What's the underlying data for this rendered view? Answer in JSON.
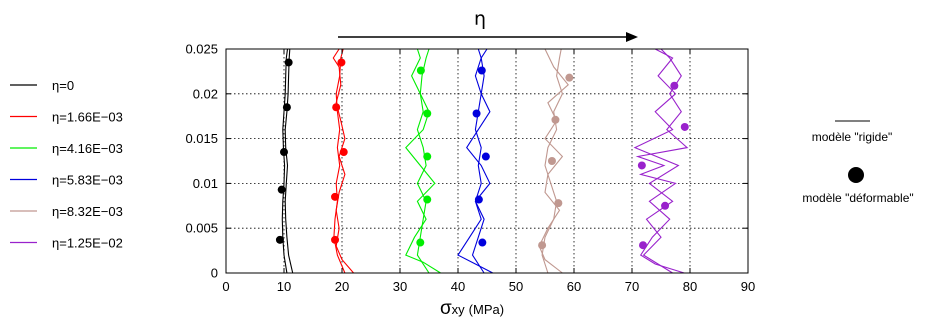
{
  "chart_data": {
    "type": "line",
    "xlabel_symbol": "σ",
    "xlabel_sub": "xy",
    "xlabel_unit": "(MPa)",
    "top_annotation": "η",
    "xlim": [
      0,
      90
    ],
    "ylim": [
      0,
      0.025
    ],
    "x_ticks": [
      "0",
      "10",
      "20",
      "30",
      "40",
      "50",
      "60",
      "70",
      "80",
      "90"
    ],
    "y_ticks": [
      "0",
      "0.005",
      "0.01",
      "0.015",
      "0.02",
      "0.025"
    ],
    "grid": true,
    "legend_position": "left",
    "series": [
      {
        "name": "η=0",
        "color": "#000000",
        "rigid_lines": [
          [
            [
              11.5,
              0
            ],
            [
              10.8,
              0.002
            ],
            [
              10.5,
              0.004
            ],
            [
              10.3,
              0.006
            ],
            [
              10.2,
              0.008
            ],
            [
              10.4,
              0.01
            ],
            [
              10.6,
              0.012
            ],
            [
              10.3,
              0.014
            ],
            [
              10.2,
              0.016
            ],
            [
              10.5,
              0.018
            ],
            [
              10.7,
              0.02
            ],
            [
              10.8,
              0.022
            ],
            [
              10.9,
              0.024
            ],
            [
              11.0,
              0.025
            ]
          ],
          [
            [
              10.5,
              0
            ],
            [
              10.0,
              0.002
            ],
            [
              9.8,
              0.004
            ],
            [
              9.7,
              0.006
            ],
            [
              9.8,
              0.008
            ],
            [
              10.0,
              0.01
            ],
            [
              10.1,
              0.012
            ],
            [
              9.9,
              0.014
            ],
            [
              9.8,
              0.016
            ],
            [
              10.0,
              0.018
            ],
            [
              10.2,
              0.02
            ],
            [
              10.3,
              0.022
            ],
            [
              10.4,
              0.024
            ],
            [
              10.6,
              0.025
            ]
          ]
        ],
        "deformable_points": [
          [
            10.8,
            0.0235
          ],
          [
            10.5,
            0.0185
          ],
          [
            10.0,
            0.0135
          ],
          [
            9.6,
            0.0093
          ],
          [
            9.3,
            0.0037
          ]
        ]
      },
      {
        "name": "η=1.66E−03",
        "color": "#ff0000",
        "rigid_lines": [
          [
            [
              22.0,
              0
            ],
            [
              20.0,
              0.0015
            ],
            [
              19.0,
              0.003
            ],
            [
              19.5,
              0.005
            ],
            [
              19.0,
              0.007
            ],
            [
              19.5,
              0.009
            ],
            [
              20.5,
              0.011
            ],
            [
              19.5,
              0.013
            ],
            [
              20.5,
              0.015
            ],
            [
              19.8,
              0.017
            ],
            [
              19.0,
              0.019
            ],
            [
              19.8,
              0.021
            ],
            [
              19.5,
              0.023
            ],
            [
              18.5,
              0.024
            ],
            [
              19.5,
              0.025
            ]
          ],
          [
            [
              20.5,
              0
            ],
            [
              19.2,
              0.002
            ],
            [
              18.6,
              0.004
            ],
            [
              18.8,
              0.006
            ],
            [
              19.2,
              0.008
            ],
            [
              19.0,
              0.01
            ],
            [
              19.6,
              0.012
            ],
            [
              19.2,
              0.014
            ],
            [
              19.6,
              0.016
            ],
            [
              19.2,
              0.018
            ],
            [
              19.0,
              0.02
            ],
            [
              19.6,
              0.022
            ],
            [
              19.8,
              0.024
            ],
            [
              20.2,
              0.025
            ]
          ]
        ],
        "deformable_points": [
          [
            19.9,
            0.0235
          ],
          [
            19.0,
            0.0185
          ],
          [
            20.3,
            0.0135
          ],
          [
            18.8,
            0.0085
          ],
          [
            18.8,
            0.0037
          ]
        ]
      },
      {
        "name": "η=4.16E−03",
        "color": "#00ee00",
        "rigid_lines": [
          [
            [
              37.0,
              0
            ],
            [
              34.0,
              0.0012
            ],
            [
              31.0,
              0.002
            ],
            [
              32.5,
              0.004
            ],
            [
              34.5,
              0.006
            ],
            [
              33.0,
              0.008
            ],
            [
              36.0,
              0.01
            ],
            [
              33.5,
              0.012
            ],
            [
              31.0,
              0.014
            ],
            [
              34.0,
              0.016
            ],
            [
              35.0,
              0.018
            ],
            [
              33.5,
              0.02
            ],
            [
              32.0,
              0.022
            ],
            [
              33.5,
              0.024
            ],
            [
              33.0,
              0.025
            ]
          ],
          [
            [
              35.0,
              0
            ],
            [
              33.0,
              0.002
            ],
            [
              33.5,
              0.004
            ],
            [
              34.0,
              0.006
            ],
            [
              34.5,
              0.008
            ],
            [
              33.0,
              0.01
            ],
            [
              34.5,
              0.012
            ],
            [
              34.0,
              0.014
            ],
            [
              33.0,
              0.016
            ],
            [
              34.0,
              0.018
            ],
            [
              33.5,
              0.02
            ],
            [
              33.8,
              0.022
            ],
            [
              34.5,
              0.024
            ],
            [
              35.0,
              0.025
            ]
          ]
        ],
        "deformable_points": [
          [
            33.6,
            0.0226
          ],
          [
            34.7,
            0.0178
          ],
          [
            34.7,
            0.013
          ],
          [
            34.7,
            0.0082
          ],
          [
            33.5,
            0.0034
          ]
        ]
      },
      {
        "name": "η=5.83E−03",
        "color": "#0000dd",
        "rigid_lines": [
          [
            [
              46.0,
              0
            ],
            [
              43.0,
              0.001
            ],
            [
              40.0,
              0.002
            ],
            [
              42.0,
              0.004
            ],
            [
              44.0,
              0.006
            ],
            [
              43.0,
              0.008
            ],
            [
              45.5,
              0.01
            ],
            [
              44.0,
              0.012
            ],
            [
              41.5,
              0.014
            ],
            [
              43.5,
              0.016
            ],
            [
              45.5,
              0.018
            ],
            [
              44.0,
              0.02
            ],
            [
              43.0,
              0.022
            ],
            [
              44.0,
              0.024
            ],
            [
              45.0,
              0.025
            ]
          ],
          [
            [
              44.5,
              0
            ],
            [
              42.5,
              0.002
            ],
            [
              43.5,
              0.004
            ],
            [
              44.5,
              0.006
            ],
            [
              43.0,
              0.008
            ],
            [
              44.0,
              0.01
            ],
            [
              43.5,
              0.012
            ],
            [
              44.0,
              0.014
            ],
            [
              43.0,
              0.016
            ],
            [
              43.5,
              0.018
            ],
            [
              44.0,
              0.02
            ],
            [
              44.5,
              0.022
            ],
            [
              44.0,
              0.024
            ],
            [
              43.5,
              0.025
            ]
          ]
        ],
        "deformable_points": [
          [
            44.1,
            0.0226
          ],
          [
            43.2,
            0.0178
          ],
          [
            44.8,
            0.013
          ],
          [
            43.6,
            0.0082
          ],
          [
            44.2,
            0.0034
          ]
        ]
      },
      {
        "name": "η=8.32E−03",
        "color": "#c09890",
        "rigid_lines": [
          [
            [
              58.0,
              0
            ],
            [
              55.0,
              0.0015
            ],
            [
              54.0,
              0.003
            ],
            [
              55.5,
              0.005
            ],
            [
              57.5,
              0.007
            ],
            [
              55.0,
              0.009
            ],
            [
              55.5,
              0.011
            ],
            [
              58.0,
              0.013
            ],
            [
              55.0,
              0.015
            ],
            [
              57.0,
              0.017
            ],
            [
              55.5,
              0.019
            ],
            [
              59.0,
              0.021
            ],
            [
              56.5,
              0.023
            ],
            [
              55.0,
              0.025
            ]
          ],
          [
            [
              55.5,
              0
            ],
            [
              54.5,
              0.002
            ],
            [
              55.0,
              0.004
            ],
            [
              56.5,
              0.006
            ],
            [
              57.0,
              0.008
            ],
            [
              56.0,
              0.01
            ],
            [
              55.0,
              0.012
            ],
            [
              55.5,
              0.014
            ],
            [
              57.0,
              0.016
            ],
            [
              56.5,
              0.018
            ],
            [
              58.0,
              0.02
            ],
            [
              57.0,
              0.022
            ],
            [
              57.5,
              0.024
            ],
            [
              57.8,
              0.025
            ]
          ]
        ],
        "deformable_points": [
          [
            59.2,
            0.0218
          ],
          [
            56.8,
            0.0171
          ],
          [
            56.2,
            0.0125
          ],
          [
            57.3,
            0.0078
          ],
          [
            54.5,
            0.0031
          ]
        ]
      },
      {
        "name": "η=1.25E−02",
        "color": "#9922cc",
        "rigid_lines": [
          [
            [
              79.0,
              0
            ],
            [
              74.0,
              0.001
            ],
            [
              71.5,
              0.002
            ],
            [
              73.5,
              0.004
            ],
            [
              76.5,
              0.006
            ],
            [
              73.0,
              0.008
            ],
            [
              77.5,
              0.01
            ],
            [
              71.5,
              0.011
            ],
            [
              75.5,
              0.012
            ],
            [
              71.0,
              0.013
            ],
            [
              79.5,
              0.014
            ],
            [
              76.0,
              0.016
            ],
            [
              78.5,
              0.018
            ],
            [
              76.5,
              0.02
            ],
            [
              78.5,
              0.022
            ],
            [
              76.5,
              0.024
            ],
            [
              75.0,
              0.025
            ]
          ],
          [
            [
              77.0,
              0
            ],
            [
              72.0,
              0.002
            ],
            [
              75.0,
              0.004
            ],
            [
              72.5,
              0.006
            ],
            [
              77.0,
              0.008
            ],
            [
              73.0,
              0.01
            ],
            [
              78.0,
              0.012
            ],
            [
              70.5,
              0.014
            ],
            [
              77.0,
              0.016
            ],
            [
              74.0,
              0.018
            ],
            [
              77.5,
              0.02
            ],
            [
              74.5,
              0.022
            ],
            [
              77.0,
              0.024
            ],
            [
              74.0,
              0.025
            ]
          ]
        ],
        "deformable_points": [
          [
            77.3,
            0.0209
          ],
          [
            79.1,
            0.0163
          ],
          [
            71.7,
            0.012
          ],
          [
            75.7,
            0.0075
          ],
          [
            71.9,
            0.0031
          ]
        ]
      }
    ],
    "side_legend": {
      "rigid_label": "modèle \"rigide\"",
      "deformable_label": "modèle \"déformable\""
    }
  }
}
